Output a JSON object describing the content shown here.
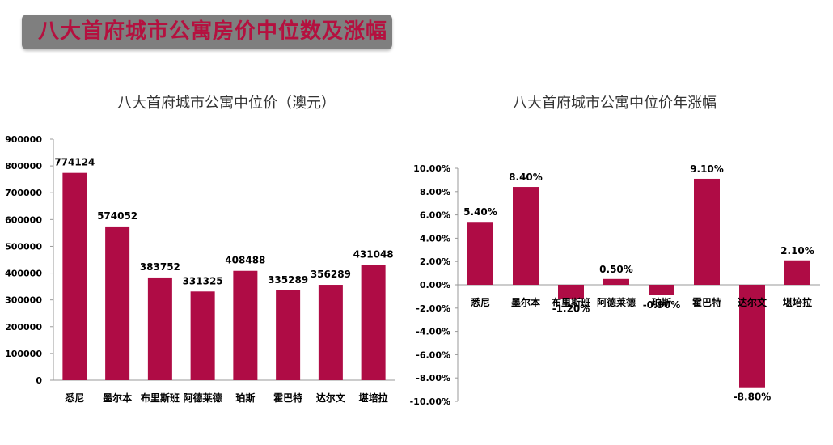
{
  "banner": {
    "title": "八大首府城市公寓房价中位数及涨幅"
  },
  "colors": {
    "bar": "#af0c45",
    "banner_bg": "#7f7f7f",
    "banner_text": "#b5103f",
    "axis": "#999999"
  },
  "chart_data": [
    {
      "type": "bar",
      "title": "八大首府城市公寓中位价（澳元）",
      "categories": [
        "悉尼",
        "墨尔本",
        "布里斯班",
        "阿德莱德",
        "珀斯",
        "霍巴特",
        "达尔文",
        "堪培拉"
      ],
      "values": [
        774124,
        574052,
        383752,
        331325,
        408488,
        335289,
        356289,
        431048
      ],
      "data_labels": [
        "774124",
        "574052",
        "383752",
        "331325",
        "408488",
        "335289",
        "356289",
        "431048"
      ],
      "ylim": [
        0,
        900000
      ],
      "yticks": [
        0,
        100000,
        200000,
        300000,
        400000,
        500000,
        600000,
        700000,
        800000,
        900000
      ],
      "ytick_labels": [
        "0",
        "100000",
        "200000",
        "300000",
        "400000",
        "500000",
        "600000",
        "700000",
        "800000",
        "900000"
      ],
      "grid": false
    },
    {
      "type": "bar",
      "title": "八大首府城市公寓中位价年涨幅",
      "categories": [
        "悉尼",
        "墨尔本",
        "布里斯班",
        "阿德莱德",
        "珀斯",
        "霍巴特",
        "达尔文",
        "堪培拉"
      ],
      "values": [
        5.4,
        8.4,
        -1.2,
        0.5,
        -0.9,
        9.1,
        -8.8,
        2.1
      ],
      "data_labels": [
        "5.40%",
        "8.40%",
        "-1.20%",
        "0.50%",
        "-0.90%",
        "9.10%",
        "-8.80%",
        "2.10%"
      ],
      "ylim": [
        -10,
        10
      ],
      "yticks": [
        -10,
        -8,
        -6,
        -4,
        -2,
        0,
        2,
        4,
        6,
        8,
        10
      ],
      "ytick_labels": [
        "-10.00%",
        "-8.00%",
        "-6.00%",
        "-4.00%",
        "-2.00%",
        "0.00%",
        "2.00%",
        "4.00%",
        "6.00%",
        "8.00%",
        "10.00%"
      ],
      "grid": false
    }
  ]
}
